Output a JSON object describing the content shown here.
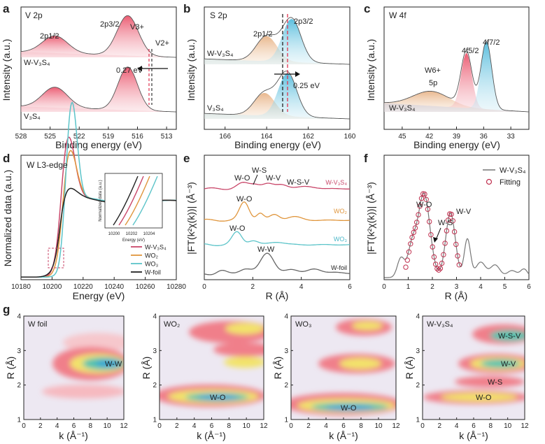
{
  "chart_data": [
    {
      "panel": "a",
      "type": "line",
      "title": "V 2p",
      "xlabel": "Binding energy (eV)",
      "ylabel": "Intensity (a.u.)",
      "xlim": [
        528,
        512
      ],
      "x_reversed": true,
      "xticks": [
        "528",
        "525",
        "522",
        "519",
        "516",
        "513"
      ],
      "series": [
        {
          "name": "W-V3S4",
          "label_text": "W-V₃S₄",
          "peaks": [
            {
              "center": 524.5,
              "height": 0.38,
              "width": 1.3
            },
            {
              "center": 517.0,
              "height": 0.88,
              "width": 1.1
            }
          ]
        },
        {
          "name": "V3S4",
          "label_text": "V₃S₄",
          "peaks": [
            {
              "center": 524.5,
              "height": 0.45,
              "width": 1.3
            },
            {
              "center": 517.0,
              "height": 0.95,
              "width": 1.0
            }
          ]
        }
      ],
      "annotations": [
        "2p1/2",
        "2p3/2",
        "V3+",
        "V2+",
        "0.27 eV"
      ],
      "reference_lines": [
        514.3,
        514.0
      ]
    },
    {
      "panel": "b",
      "type": "line",
      "title": "S 2p",
      "xlabel": "Binding energy (eV)",
      "ylabel": "Intensity (a.u.)",
      "xlim": [
        167,
        160
      ],
      "x_reversed": true,
      "xticks": [
        "166",
        "164",
        "162",
        "160"
      ],
      "series": [
        {
          "name": "W-V3S4",
          "label_text": "W-V₃S₄",
          "peaks": [
            {
              "center": 164.0,
              "height": 0.55,
              "width": 0.5
            },
            {
              "center": 162.8,
              "height": 0.95,
              "width": 0.45
            }
          ]
        },
        {
          "name": "V3S4",
          "label_text": "V₃S₄",
          "peaks": [
            {
              "center": 164.1,
              "height": 0.5,
              "width": 0.5
            },
            {
              "center": 163.0,
              "height": 0.95,
              "width": 0.45
            }
          ]
        }
      ],
      "annotations": [
        "2p1/2",
        "2p3/2",
        "0.25 eV"
      ],
      "reference_lines": [
        163.0,
        162.75
      ]
    },
    {
      "panel": "c",
      "type": "line",
      "title": "W 4f",
      "xlabel": "Binding energy (eV)",
      "ylabel": "Intensity (a.u.)",
      "xlim": [
        47,
        31
      ],
      "x_reversed": true,
      "xticks": [
        "45",
        "42",
        "39",
        "36",
        "33"
      ],
      "series": [
        {
          "name": "W-V3S4",
          "label_text": "W-V₃S₄",
          "peaks": [
            {
              "center": 41.8,
              "height": 0.2,
              "width": 2.0
            },
            {
              "center": 37.9,
              "height": 0.75,
              "width": 0.6
            },
            {
              "center": 35.7,
              "height": 0.92,
              "width": 0.6
            }
          ]
        }
      ],
      "annotations": [
        "W6+",
        "5p",
        "4f5/2",
        "4f7/2"
      ]
    },
    {
      "panel": "d",
      "type": "line",
      "title": "W L3-edge",
      "xlabel": "Energy (eV)",
      "ylabel": "Normalized data (a.u.)",
      "xlim": [
        10180,
        10280
      ],
      "ylim": [
        0,
        1.45
      ],
      "xticks": [
        "10180",
        "10200",
        "10220",
        "10240",
        "10260",
        "10280"
      ],
      "legend": [
        "W-V3S4",
        "WO2",
        "WO3",
        "W-foil"
      ],
      "series_colors": [
        "#c9476a",
        "#e0963d",
        "#5cc4c9",
        "#222222"
      ],
      "inset": {
        "xlabel": "Energy (eV)",
        "ylabel": "Normalized data (a.u.)",
        "xticks": [
          "10200",
          "10202",
          "10204"
        ]
      }
    },
    {
      "panel": "e",
      "type": "line",
      "xlabel": "R (Å)",
      "ylabel": "|FT(k²χ(k))| (Å⁻³)",
      "xlim": [
        0,
        6
      ],
      "xticks": [
        "0",
        "2",
        "4",
        "6"
      ],
      "series": [
        "W-V3S4",
        "WO2",
        "WO3",
        "W-foil"
      ],
      "annotations": [
        "W-O",
        "W-S",
        "W-V",
        "W-S-V",
        "W-O",
        "W-O",
        "W-W"
      ]
    },
    {
      "panel": "f",
      "type": "line",
      "xlabel": "R (Å)",
      "ylabel": "|FT(k²χ(k))| (Å⁻³)",
      "xlim": [
        0,
        6
      ],
      "xticks": [
        "0",
        "1",
        "2",
        "3",
        "4",
        "5",
        "6"
      ],
      "legend": [
        "W-V3S4",
        "Fitting"
      ],
      "annotations": [
        "W-O",
        "W-S",
        "W-V"
      ]
    },
    {
      "panel": "g",
      "type": "heatmap",
      "xlabel": "k (Å⁻¹)",
      "ylabel": "R (Å)",
      "xlim": [
        0,
        12
      ],
      "ylim": [
        1,
        4
      ],
      "xticks": [
        "0",
        "2",
        "4",
        "6",
        "8",
        "10",
        "12"
      ],
      "yticks": [
        "1",
        "2",
        "3",
        "4"
      ],
      "maps": [
        {
          "name": "W foil",
          "labels": [
            "W-W"
          ]
        },
        {
          "name": "WO2",
          "labels": [
            "W-O"
          ]
        },
        {
          "name": "WO3",
          "labels": [
            "W-O"
          ]
        },
        {
          "name": "W-V3S4",
          "labels": [
            "W-S-V",
            "W-V",
            "W-S",
            "W-O"
          ]
        }
      ]
    }
  ],
  "text": {
    "pa": "a",
    "pb": "b",
    "pc": "c",
    "pd": "d",
    "pe": "e",
    "pf": "f",
    "pg": "g",
    "a_title": "V 2p",
    "b_title": "S 2p",
    "c_title": "W 4f",
    "a_p12": "2p1/2",
    "a_p32": "2p3/2",
    "a_v3": "V3+",
    "a_v2": "V2+",
    "a_shift": "0.27 eV",
    "a_s1": "W-V₃S₄",
    "a_s2": "V₃S₄",
    "b_p12": "2p1/2",
    "b_p32": "2p3/2",
    "b_shift": "0.25 eV",
    "b_s1": "W-V₃S₄",
    "b_s2": "V₃S₄",
    "c_w6": "W6+",
    "c_5p": "5p",
    "c_f52": "4f5/2",
    "c_f72": "4f7/2",
    "c_s1": "W-V₃S₄",
    "xps_ylabel": "Intensity (a.u.)",
    "xps_xlabel": "Binding energy (eV)",
    "d_title": "W L3-edge",
    "d_ylabel": "Normalized data (a.u.)",
    "d_xlabel": "Energy (eV)",
    "d_leg1": "W-V₃S₄",
    "d_leg2": "WO₂",
    "d_leg3": "WO₃",
    "d_leg4": "W-foil",
    "d_in_x": "Energy (eV)",
    "d_in_y": "Normalized data (a.u.)",
    "e_ylabel": "|FT(k²χ(k))| (Å⁻³)",
    "e_xlabel": "R (Å)",
    "e_wo1": "W-O",
    "e_ws": "W-S",
    "e_wv": "W-V",
    "e_wsv": "W-S-V",
    "e_wo2": "W-O",
    "e_wo3": "W-O",
    "e_ww": "W-W",
    "e_l1": "W-V₃S₄",
    "e_l2": "WO₂",
    "e_l3": "WO₃",
    "e_l4": "W-foil",
    "f_wo": "W-O",
    "f_ws": "W-S",
    "f_wv": "W-V",
    "f_leg1": "W-V₃S₄",
    "f_leg2": "Fitting",
    "g_ylabel": "R (Å)",
    "g_xlabel": "k (Å⁻¹)",
    "g1": "W foil",
    "g2": "WO₂",
    "g3": "WO₃",
    "g4": "W-V₃S₄",
    "g1_ww": "W-W",
    "g2_wo": "W-O",
    "g3_wo": "W-O",
    "g4_wsv": "W-S-V",
    "g4_wv": "W-V",
    "g4_ws": "W-S",
    "g4_wo": "W-O"
  },
  "colors": {
    "red": "#e0334f",
    "pink": "#f08a9c",
    "cyan": "#4cb8d9",
    "orange": "#e0963d",
    "teal": "#5cc4c9",
    "dark": "#333333"
  }
}
